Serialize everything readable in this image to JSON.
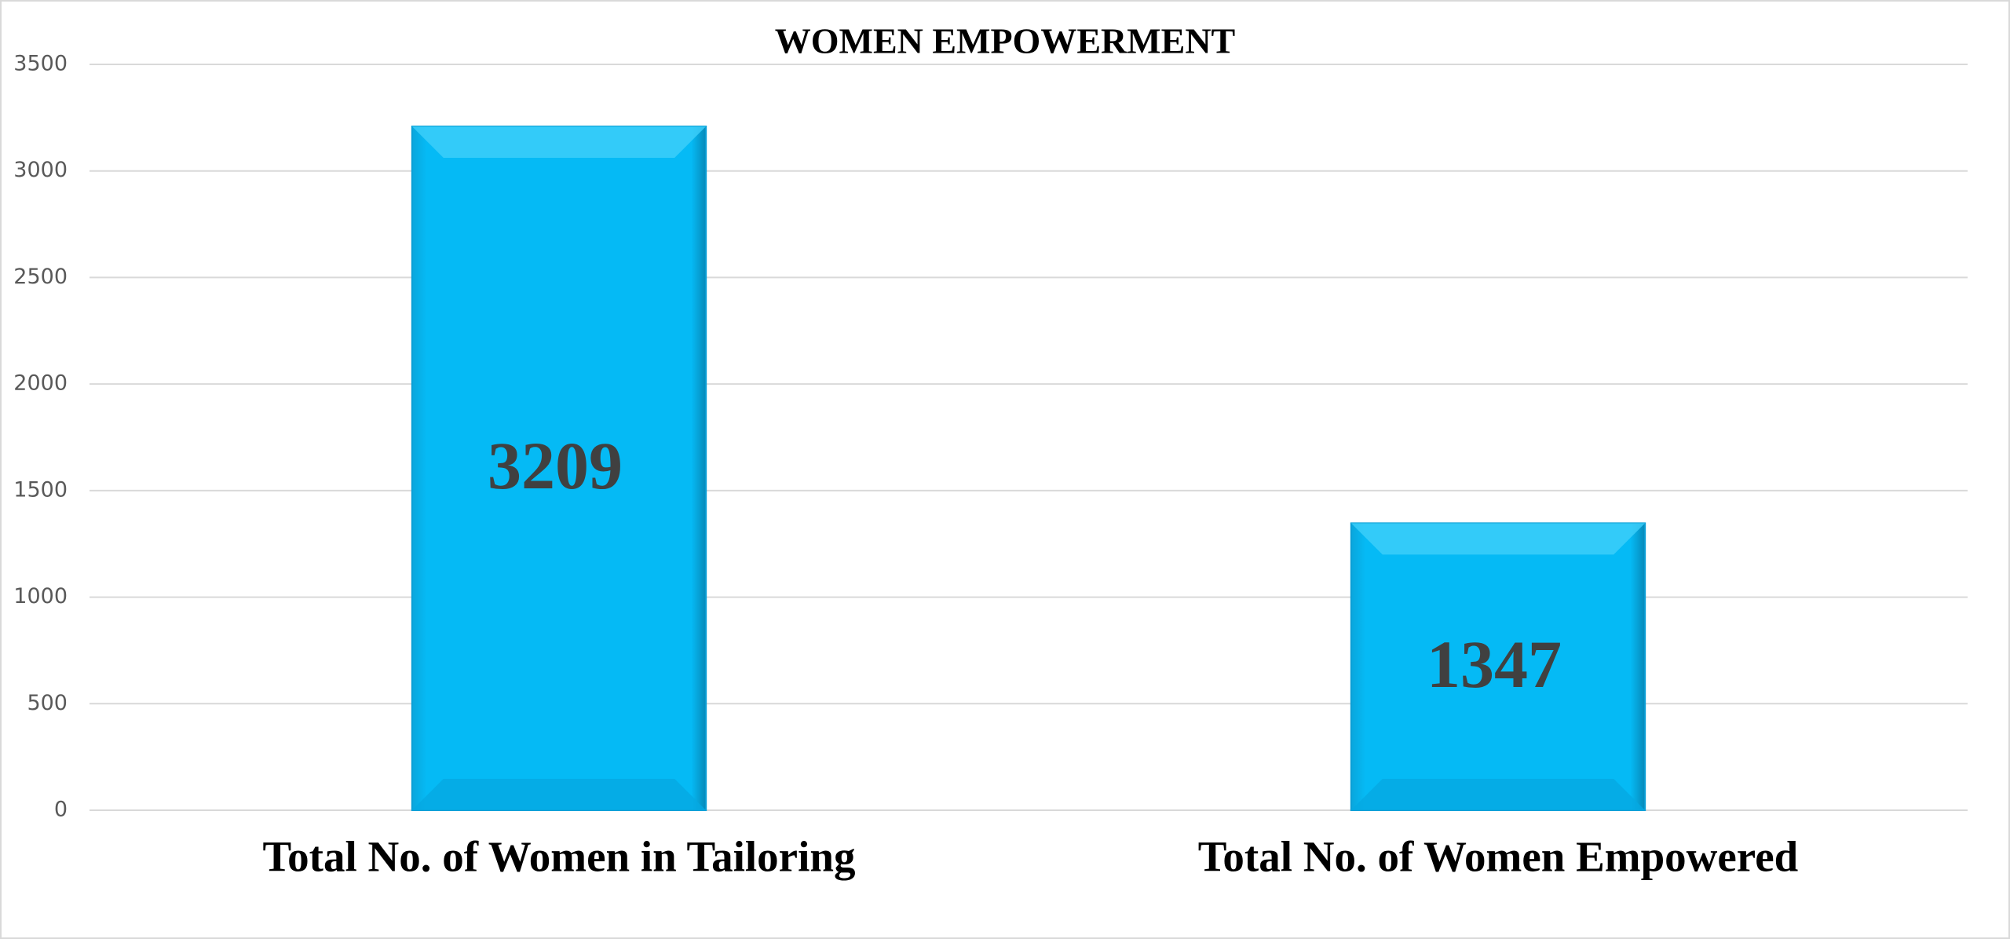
{
  "chart_data": {
    "type": "bar",
    "title": "WOMEN EMPOWERMENT",
    "categories": [
      "Total No. of Women in Tailoring",
      "Total No. of Women Empowered"
    ],
    "values": [
      3209,
      1347
    ],
    "color": "#05baf5",
    "ylim": [
      0,
      3500
    ],
    "yticks": [
      0,
      500,
      1000,
      1500,
      2000,
      2500,
      3000,
      3500
    ],
    "grid": true
  }
}
